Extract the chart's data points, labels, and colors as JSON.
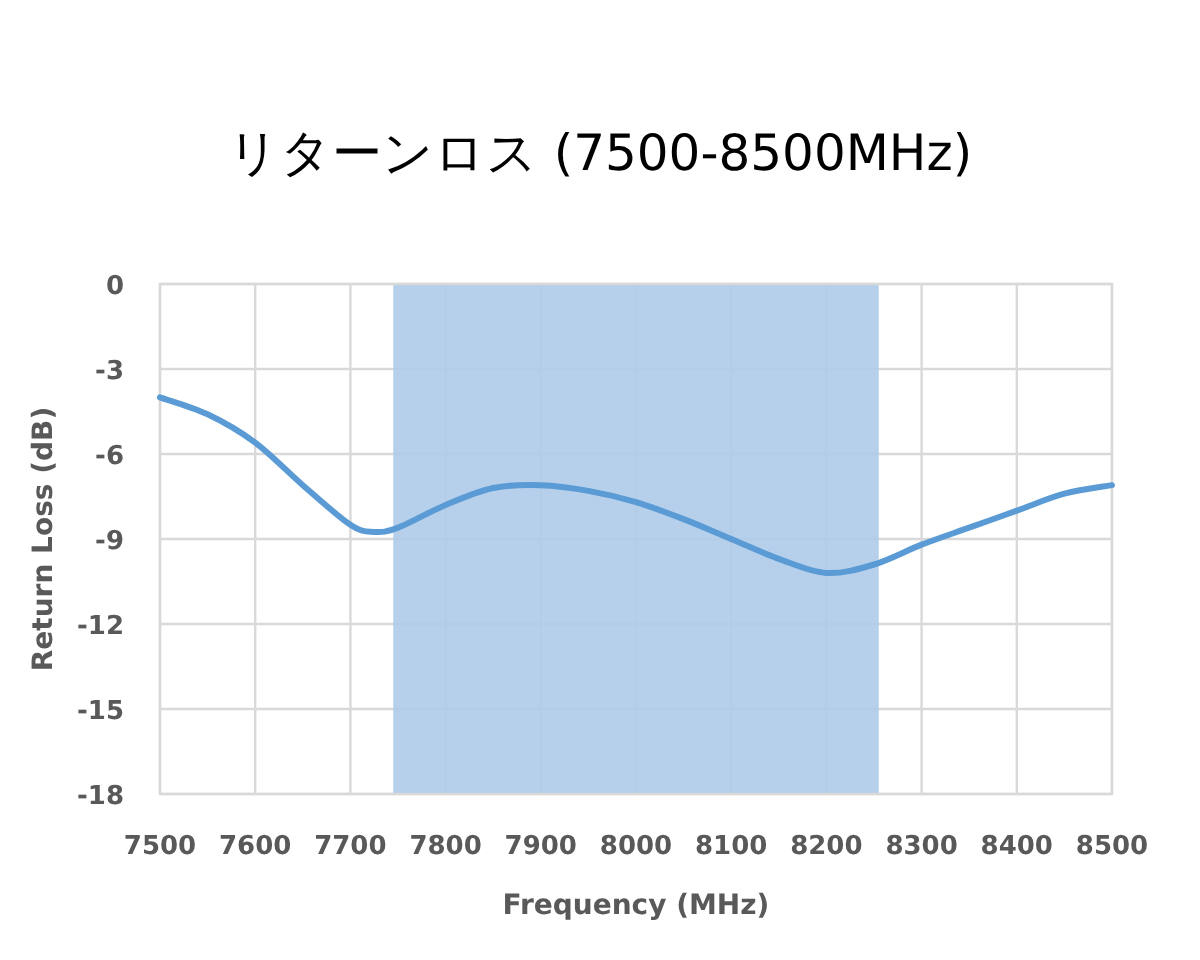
{
  "chart_data": {
    "type": "line",
    "title": "リターンロス (7500-8500MHz)",
    "xlabel": "Frequency (MHz)",
    "ylabel": "Return Loss (dB)",
    "x": [
      7500,
      7550,
      7600,
      7650,
      7700,
      7725,
      7750,
      7800,
      7850,
      7900,
      7950,
      8000,
      8050,
      8100,
      8150,
      8200,
      8250,
      8300,
      8350,
      8400,
      8450,
      8500
    ],
    "series": [
      {
        "color": "#5b9bd5",
        "values": [
          -4.0,
          -4.6,
          -5.6,
          -7.1,
          -8.5,
          -8.75,
          -8.6,
          -7.8,
          -7.2,
          -7.1,
          -7.3,
          -7.7,
          -8.3,
          -9.0,
          -9.7,
          -10.2,
          -9.9,
          -9.2,
          -8.6,
          -8.0,
          -7.4,
          -7.1
        ]
      }
    ],
    "xlim": [
      7500,
      8500
    ],
    "ylim": [
      -18,
      0
    ],
    "xticks": [
      7500,
      7600,
      7700,
      7800,
      7900,
      8000,
      8100,
      8200,
      8300,
      8400,
      8500
    ],
    "yticks": [
      0,
      -3,
      -6,
      -9,
      -12,
      -15,
      -18
    ],
    "bands": [
      {
        "axis": "x",
        "from": 7745,
        "to": 8255,
        "color": "#aecbe9"
      }
    ],
    "grid": true,
    "marker": "none",
    "line_style": "solid"
  }
}
